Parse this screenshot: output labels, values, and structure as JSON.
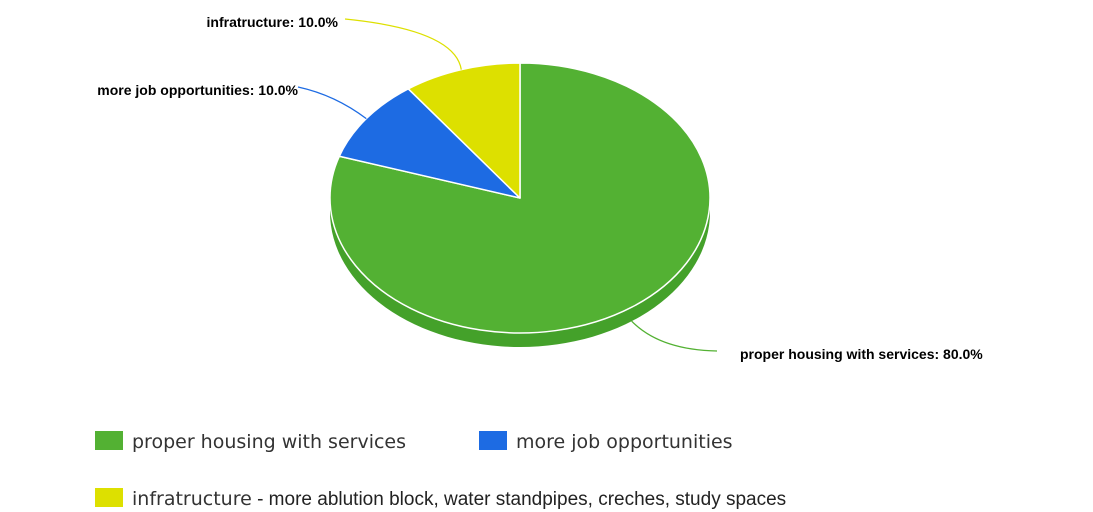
{
  "chart_data": {
    "type": "pie",
    "style": "3d",
    "title": "",
    "slices": [
      {
        "label": "proper housing with services",
        "value": 80.0,
        "value_label": "proper housing with services: 80.0%",
        "color": "#53b133",
        "side_color": "#44a12a"
      },
      {
        "label": "more job opportunities",
        "value": 10.0,
        "value_label": "more job opportunities: 10.0%",
        "color": "#1d6be3",
        "side_color": "#1a5cc4"
      },
      {
        "label": "infratructure",
        "value": 10.0,
        "value_label": "infratructure: 10.0%",
        "color": "#dde000",
        "side_color": "#c9cc00"
      }
    ],
    "legend": {
      "placement": "bottom",
      "items": [
        {
          "label": "proper housing with services",
          "color": "#53b133"
        },
        {
          "label": "more job opportunities",
          "color": "#1d6be3"
        },
        {
          "label": "infratructure",
          "suffix": " - more ablution block, water standpipes, creches, study spaces",
          "color": "#dde000"
        }
      ]
    }
  }
}
